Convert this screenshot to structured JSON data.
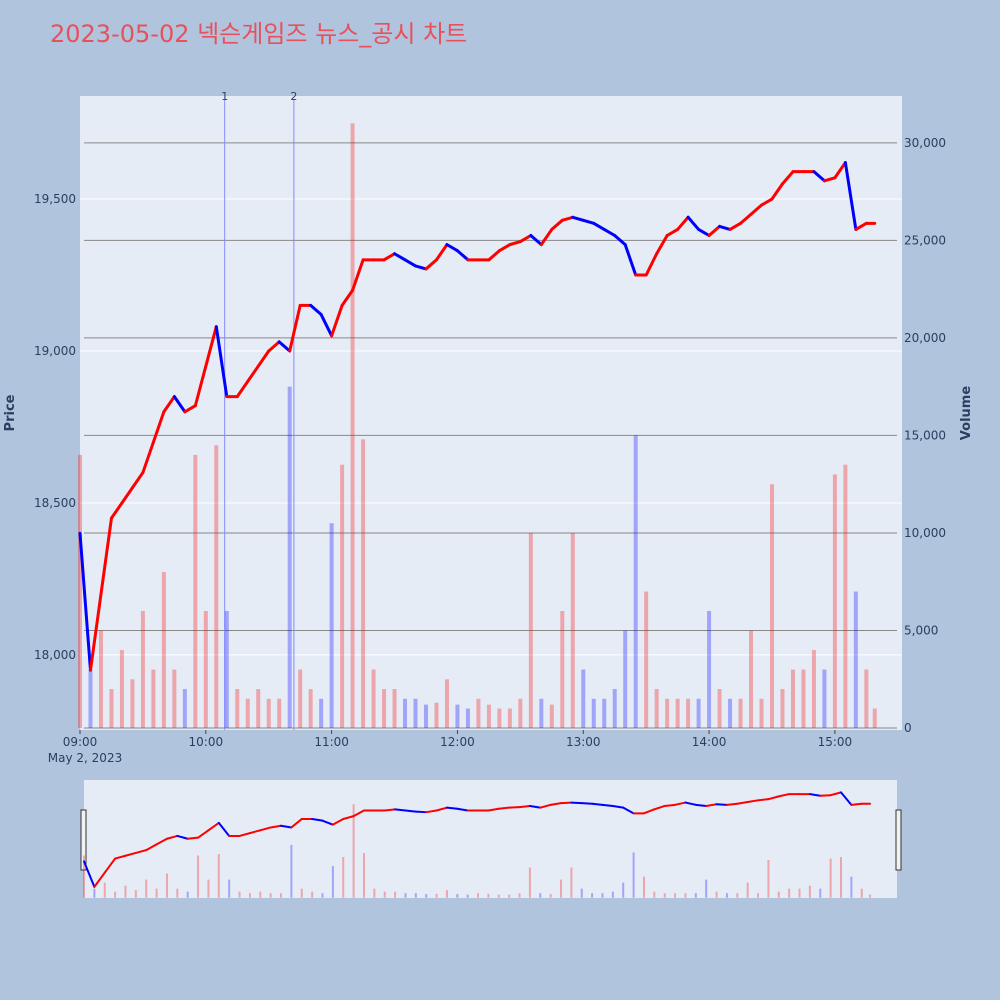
{
  "chart_data": {
    "type": "price_volume",
    "title": "2023-05-02 넥슨게임즈 뉴스_공시 차트",
    "y_label": "Price",
    "y2_label": "Volume",
    "x_date_label": "May 2, 2023",
    "x": [
      "09:00",
      "09:05",
      "09:10",
      "09:15",
      "09:20",
      "09:25",
      "09:30",
      "09:35",
      "09:40",
      "09:45",
      "09:50",
      "09:55",
      "10:00",
      "10:05",
      "10:10",
      "10:15",
      "10:20",
      "10:25",
      "10:30",
      "10:35",
      "10:40",
      "10:45",
      "10:50",
      "10:55",
      "11:00",
      "11:05",
      "11:10",
      "11:15",
      "11:20",
      "11:25",
      "11:30",
      "11:35",
      "11:40",
      "11:45",
      "11:50",
      "11:55",
      "12:00",
      "12:05",
      "12:10",
      "12:15",
      "12:20",
      "12:25",
      "12:30",
      "12:35",
      "12:40",
      "12:45",
      "12:50",
      "12:55",
      "13:00",
      "13:05",
      "13:10",
      "13:15",
      "13:20",
      "13:25",
      "13:30",
      "13:35",
      "13:40",
      "13:45",
      "13:50",
      "13:55",
      "14:00",
      "14:05",
      "14:10",
      "14:15",
      "14:20",
      "14:25",
      "14:30",
      "14:35",
      "14:40",
      "14:45",
      "14:50",
      "14:55",
      "15:00",
      "15:05",
      "15:10",
      "15:15",
      "15:19"
    ],
    "price_values": [
      18400,
      17950,
      18200,
      18450,
      18500,
      18550,
      18600,
      18700,
      18800,
      18850,
      18800,
      18820,
      18950,
      19080,
      18850,
      18850,
      18900,
      18950,
      19000,
      19030,
      19000,
      19150,
      19150,
      19120,
      19050,
      19150,
      19200,
      19300,
      19300,
      19300,
      19320,
      19300,
      19280,
      19270,
      19300,
      19350,
      19330,
      19300,
      19300,
      19300,
      19330,
      19350,
      19360,
      19380,
      19350,
      19400,
      19430,
      19440,
      19430,
      19420,
      19400,
      19380,
      19350,
      19250,
      19250,
      19320,
      19380,
      19400,
      19440,
      19400,
      19380,
      19410,
      19400,
      19420,
      19450,
      19480,
      19500,
      19550,
      19590,
      19590,
      19590,
      19560,
      19570,
      19620,
      19400,
      19420,
      19420
    ],
    "volume_values": [
      14000,
      3000,
      5000,
      2000,
      4000,
      2500,
      6000,
      3000,
      8000,
      3000,
      2000,
      14000,
      6000,
      14500,
      6000,
      2000,
      1500,
      2000,
      1500,
      1500,
      17500,
      3000,
      2000,
      1500,
      10500,
      13500,
      31000,
      14800,
      3000,
      2000,
      2000,
      1500,
      1500,
      1200,
      1300,
      2500,
      1200,
      1000,
      1500,
      1200,
      1000,
      1000,
      1500,
      10000,
      1500,
      1200,
      6000,
      10000,
      3000,
      1500,
      1500,
      2000,
      5000,
      15000,
      7000,
      2000,
      1500,
      1500,
      1500,
      1500,
      6000,
      2000,
      1500,
      1500,
      5000,
      1500,
      12500,
      2000,
      3000,
      3000,
      4000,
      3000,
      13000,
      13500,
      7000,
      3000,
      1000
    ],
    "up_color": "#ff0000",
    "down_color": "#0000ff",
    "xlim": [
      "09:00",
      "15:32"
    ],
    "xticks": [
      "09:00",
      "10:00",
      "11:00",
      "12:00",
      "13:00",
      "14:00",
      "15:00"
    ],
    "ylim": [
      17753,
      19839
    ],
    "yticks": [
      {
        "value": 18000,
        "label": "18,000"
      },
      {
        "value": 18500,
        "label": "18,500"
      },
      {
        "value": 19000,
        "label": "19,000"
      },
      {
        "value": 19500,
        "label": "19,500"
      }
    ],
    "y2lim": [
      -100,
      32400
    ],
    "y2ticks": [
      0,
      {
        "value": 5000,
        "label": "5,000"
      },
      {
        "value": 10000,
        "label": "10,000"
      },
      {
        "value": 15000,
        "label": "15,000"
      },
      {
        "value": 20000,
        "label": "20,000"
      },
      {
        "value": 25000,
        "label": "25,000"
      },
      {
        "value": 30000,
        "label": "30,000"
      }
    ],
    "grid": true,
    "annotations": [
      {
        "x": "10:09",
        "text": "1"
      },
      {
        "x": "10:42",
        "text": "2"
      }
    ]
  }
}
